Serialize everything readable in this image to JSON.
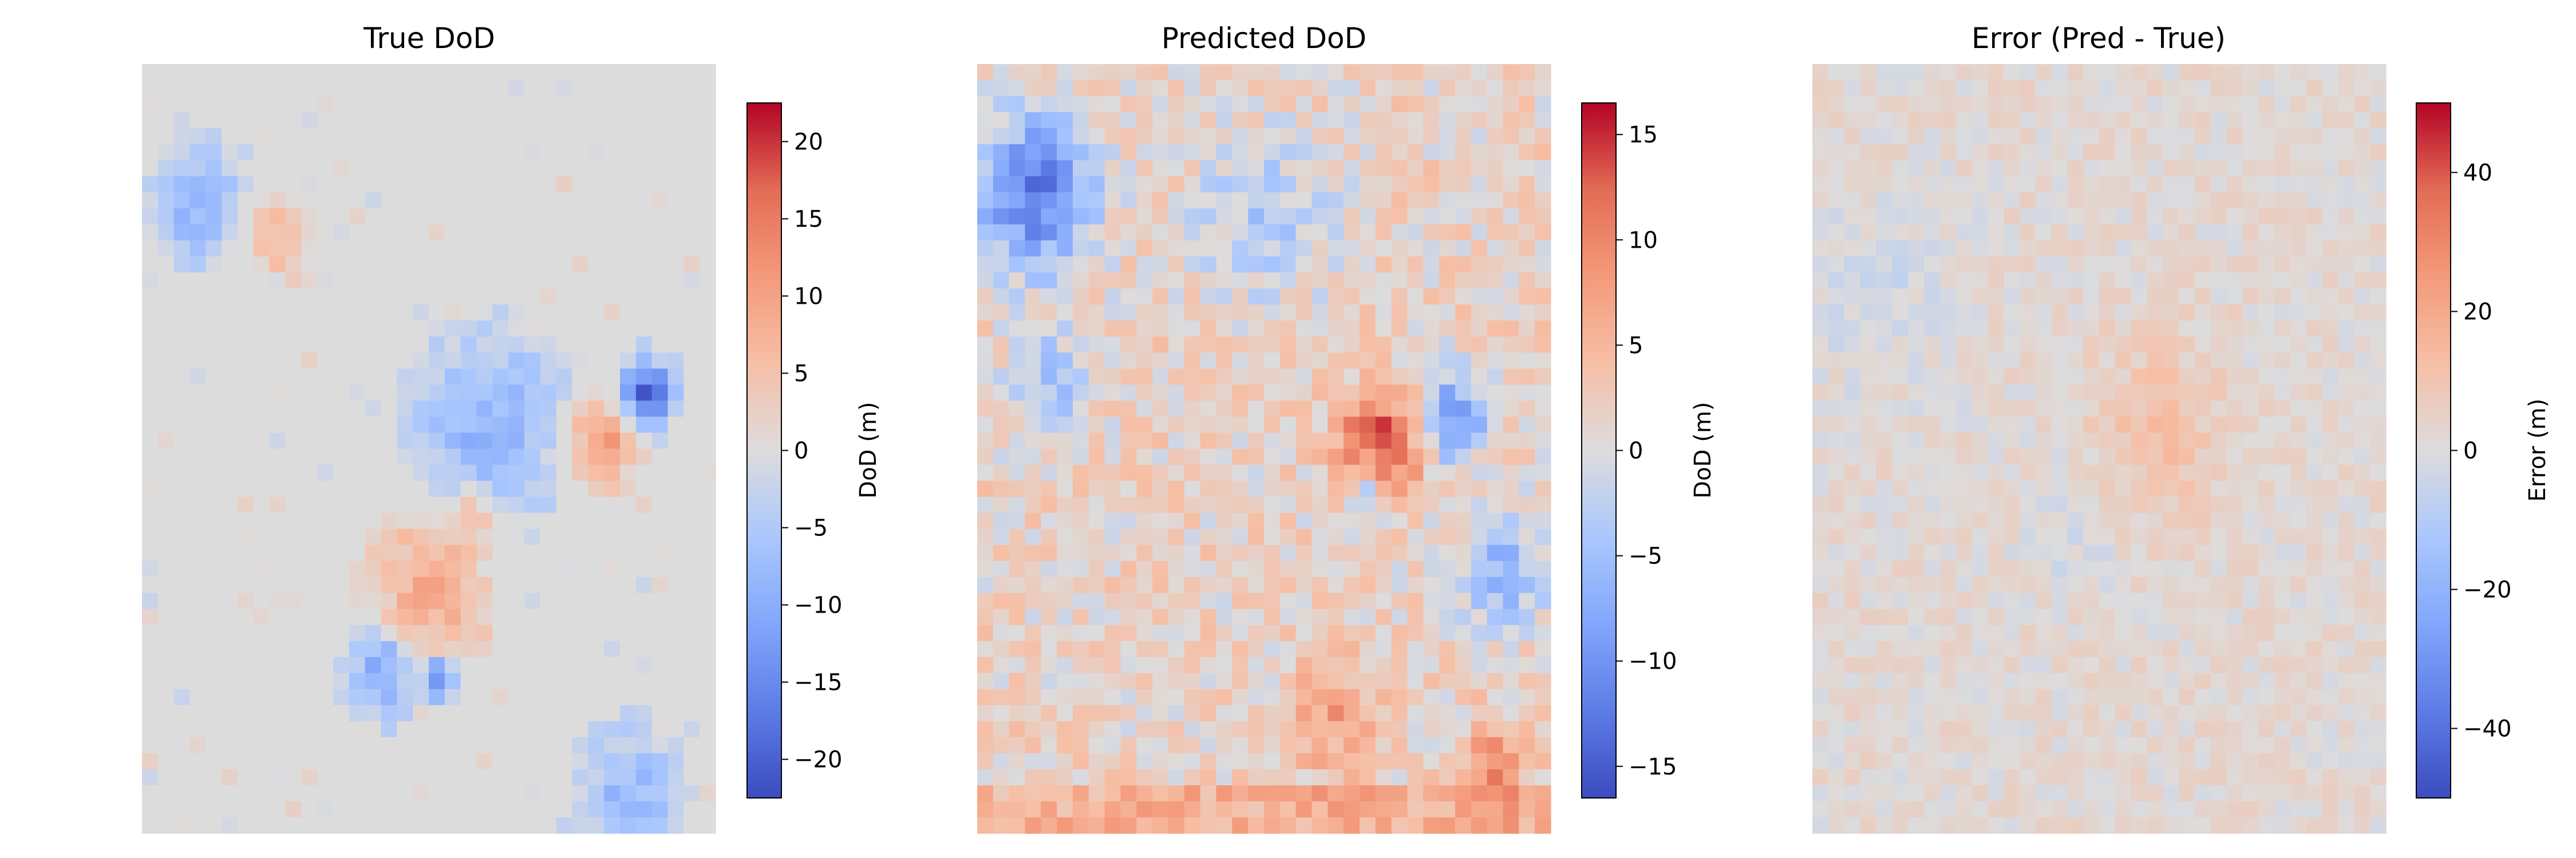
{
  "chart_data": [
    {
      "type": "heatmap",
      "title": "True DoD",
      "colorbar": {
        "label": "DoD (m)",
        "range": [
          -22.5,
          22.5
        ],
        "ticks": [
          20,
          15,
          10,
          5,
          0,
          -5,
          -10,
          -15,
          -20
        ],
        "tick_labels": [
          "20",
          "15",
          "10",
          "5",
          "0",
          "−5",
          "−10",
          "−15",
          "−20"
        ],
        "colormap": "coolwarm"
      },
      "axes": "off",
      "grid_cells": [
        36,
        48
      ],
      "features": [
        {
          "description": "upper-left negative cluster",
          "approx_value": -8
        },
        {
          "description": "central negative cluster",
          "approx_value": -9
        },
        {
          "description": "far-right deep negative patch",
          "approx_value": -20
        },
        {
          "description": "lower-center positive cluster",
          "approx_value": 9
        },
        {
          "description": "lower-left negative patch",
          "approx_value": -12
        },
        {
          "description": "bottom-right negative patch",
          "approx_value": -7
        }
      ]
    },
    {
      "type": "heatmap",
      "title": "Predicted DoD",
      "colorbar": {
        "label": "DoD (m)",
        "range": [
          -16.5,
          16.5
        ],
        "ticks": [
          15,
          10,
          5,
          0,
          -5,
          -10,
          -15
        ],
        "tick_labels": [
          "15",
          "10",
          "5",
          "0",
          "−5",
          "−10",
          "−15"
        ],
        "colormap": "coolwarm"
      },
      "axes": "off",
      "grid_cells": [
        36,
        48
      ],
      "features": [
        {
          "description": "upper-left deep negative",
          "approx_value": -15
        },
        {
          "description": "central-right strong positive",
          "approx_value": 14
        },
        {
          "description": "bottom positive band",
          "approx_value": 6
        }
      ]
    },
    {
      "type": "heatmap",
      "title": "Error (Pred - True)",
      "colorbar": {
        "label": "Error (m)",
        "range": [
          -50,
          50
        ],
        "ticks": [
          40,
          20,
          0,
          -20,
          -40
        ],
        "tick_labels": [
          "40",
          "20",
          "0",
          "−20",
          "−40"
        ],
        "colormap": "coolwarm"
      },
      "axes": "off",
      "grid_cells": [
        36,
        48
      ],
      "features": [
        {
          "description": "mostly small residuals",
          "approx_value": 3
        },
        {
          "description": "central positive blob",
          "approx_value": 12
        }
      ]
    }
  ]
}
